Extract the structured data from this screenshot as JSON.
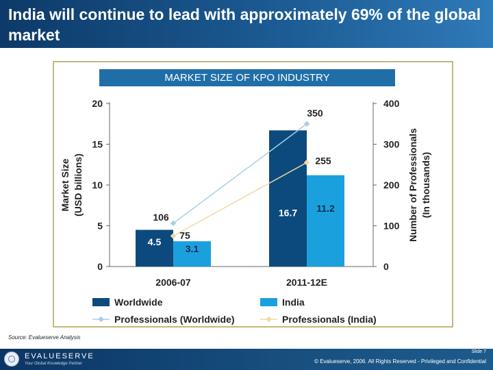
{
  "slide": {
    "title": "India will continue to lead with approximately 69% of the global market",
    "source": "Source: Evalueserve Analysis",
    "slide_number": "Slide 7",
    "copyright": "© Evalueserve, 2006. All Rights Reserved - Privileged and Confidential",
    "logo": {
      "name": "EVALUESERVE",
      "tagline": "Your Global Knowledge Partner"
    }
  },
  "colors": {
    "worldwide_bar": "#0c4a7d",
    "india_bar": "#1ba0de",
    "professionals_worldwide_line": "#a6cfe8",
    "professionals_india_line": "#f3d8a2"
  },
  "chart_data": {
    "type": "bar",
    "title": "MARKET SIZE OF KPO INDUSTRY",
    "categories": [
      "2006-07",
      "2011-12E"
    ],
    "ylabel_left": "Market Size (USD billions)",
    "ylabel_right": "Number of Professionals (In thousands)",
    "ylim_left": [
      0,
      20
    ],
    "ylim_right": [
      0,
      400
    ],
    "yticks_left": [
      0,
      5,
      10,
      15,
      20
    ],
    "yticks_right": [
      0,
      100,
      200,
      300,
      400
    ],
    "series": [
      {
        "name": "Worldwide",
        "kind": "bar",
        "axis": "left",
        "values": [
          4.5,
          16.7
        ],
        "labels": [
          "4.5",
          "16.7"
        ]
      },
      {
        "name": "India",
        "kind": "bar",
        "axis": "left",
        "values": [
          3.1,
          11.2
        ],
        "labels": [
          "3.1",
          "11.2"
        ]
      },
      {
        "name": "Professionals (Worldwide)",
        "kind": "line",
        "axis": "right",
        "values": [
          106,
          350
        ],
        "labels": [
          "106",
          "350"
        ]
      },
      {
        "name": "Professionals (India)",
        "kind": "line",
        "axis": "right",
        "values": [
          75,
          255
        ],
        "labels": [
          "75",
          "255"
        ]
      }
    ],
    "legend": [
      "Worldwide",
      "India",
      "Professionals (Worldwide)",
      "Professionals (India)"
    ],
    "legend_position": "bottom",
    "grid": false
  }
}
